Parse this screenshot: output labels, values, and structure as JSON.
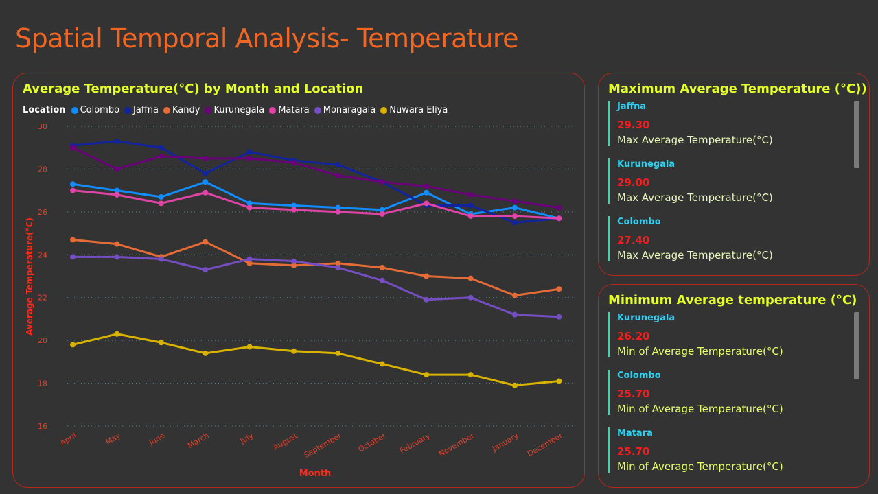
{
  "page": {
    "title": "Spatial Temporal Analysis- Temperature"
  },
  "chart_panel": {
    "title": "Average Temperature(°C) by Month and Location",
    "legend_title": "Location"
  },
  "chart_data": {
    "type": "line",
    "title": "Average Temperature(°C) by Month and Location",
    "xlabel": "Month",
    "ylabel": "Average Temperature(°C)",
    "ylim": [
      16,
      30
    ],
    "yticks": [
      16,
      18,
      20,
      22,
      24,
      26,
      28,
      30
    ],
    "grid": true,
    "legend_position": "top-left",
    "categories": [
      "April",
      "May",
      "June",
      "March",
      "July",
      "August",
      "September",
      "October",
      "February",
      "November",
      "January",
      "December"
    ],
    "series": [
      {
        "name": "Colombo",
        "color": "#118dff",
        "values": [
          27.3,
          27.0,
          26.7,
          27.4,
          26.4,
          26.3,
          26.2,
          26.1,
          26.9,
          25.9,
          26.2,
          25.7
        ]
      },
      {
        "name": "Jaffna",
        "color": "#12239e",
        "values": [
          29.1,
          29.3,
          29.0,
          27.8,
          28.8,
          28.4,
          28.2,
          27.4,
          26.3,
          26.3,
          25.5,
          25.7
        ]
      },
      {
        "name": "Kandy",
        "color": "#e66c37",
        "values": [
          24.7,
          24.5,
          23.9,
          24.6,
          23.6,
          23.5,
          23.6,
          23.4,
          23.0,
          22.9,
          22.1,
          22.4
        ]
      },
      {
        "name": "Kurunegala",
        "color": "#6b007b",
        "values": [
          29.0,
          28.0,
          28.6,
          28.5,
          28.5,
          28.3,
          27.7,
          27.4,
          27.2,
          26.8,
          26.5,
          26.2
        ]
      },
      {
        "name": "Matara",
        "color": "#e044a7",
        "values": [
          27.0,
          26.8,
          26.4,
          26.9,
          26.2,
          26.1,
          26.0,
          25.9,
          26.4,
          25.8,
          25.8,
          25.7
        ]
      },
      {
        "name": "Monaragala",
        "color": "#744ec2",
        "values": [
          23.9,
          23.9,
          23.8,
          23.3,
          23.8,
          23.7,
          23.4,
          22.8,
          21.9,
          22.0,
          21.2,
          21.1
        ]
      },
      {
        "name": "Nuwara Eliya",
        "color": "#d9b300",
        "values": [
          19.8,
          20.3,
          19.9,
          19.4,
          19.7,
          19.5,
          19.4,
          18.9,
          18.4,
          18.4,
          17.9,
          18.1
        ]
      }
    ]
  },
  "max_panel": {
    "title": "Maximum Average Temperature (°C))",
    "cards": [
      {
        "name": "Jaffna",
        "value": "29.30",
        "label": "Max Average Temperature(°C)"
      },
      {
        "name": "Kurunegala",
        "value": "29.00",
        "label": "Max Average Temperature(°C)"
      },
      {
        "name": "Colombo",
        "value": "27.40",
        "label": "Max Average Temperature(°C)"
      }
    ]
  },
  "min_panel": {
    "title": "Minimum Average temperature (°C)",
    "cards": [
      {
        "name": "Kurunegala",
        "value": "26.20",
        "label": "Min of Average Temperature(°C)"
      },
      {
        "name": "Colombo",
        "value": "25.70",
        "label": "Min of Average Temperature(°C)"
      },
      {
        "name": "Matara",
        "value": "25.70",
        "label": "Min of Average Temperature(°C)"
      }
    ]
  }
}
